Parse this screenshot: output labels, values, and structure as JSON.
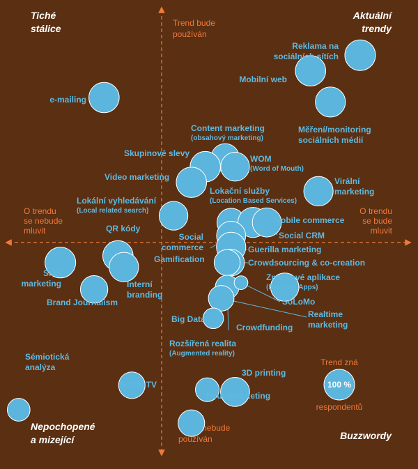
{
  "chart_data": {
    "type": "scatter",
    "title": "",
    "xlabel": "",
    "ylabel": "",
    "quadrants": {
      "top_left": [
        "Tiché",
        "stálice"
      ],
      "top_right": [
        "Aktuální",
        "trendy"
      ],
      "bottom_left": [
        "Nepochopené",
        "a mizející"
      ],
      "bottom_right": [
        "Buzzwordy"
      ]
    },
    "axis_labels": {
      "top": [
        "Trend bude",
        "používán"
      ],
      "bottom": [
        "Trend nebude",
        "používán"
      ],
      "left": [
        "O trendu",
        "se nebude",
        "mluvit"
      ],
      "right": [
        "O trendu",
        "se bude",
        "mluvit"
      ]
    },
    "legend": {
      "title": "Trend zná",
      "value": "100 %",
      "footer": "respondentů"
    },
    "points": [
      {
        "name": "Reklama na sociálních sítích",
        "lines": [
          "Reklama na",
          "sociálních sítích"
        ],
        "x": 1.0,
        "y": 0.84,
        "awareness": 100
      },
      {
        "name": "Mobilní web",
        "lines": [
          "Mobilní web"
        ],
        "x": 0.75,
        "y": 0.77,
        "awareness": 98
      },
      {
        "name": "Měření/monitoring sociálních médií",
        "lines": [
          "Měření/monitoring",
          "sociálních médií"
        ],
        "x": 0.85,
        "y": 0.63,
        "awareness": 96
      },
      {
        "name": "e-mailing",
        "lines": [
          "e-mailing"
        ],
        "x": -0.29,
        "y": 0.65,
        "awareness": 98
      },
      {
        "name": "Content marketing",
        "lines": [
          "Content marketing"
        ],
        "sub": "(obsahový marketing)",
        "x": 0.32,
        "y": 0.38,
        "awareness": 85
      },
      {
        "name": "Skupinové slevy",
        "lines": [
          "Skupinové slevy"
        ],
        "x": 0.22,
        "y": 0.34,
        "awareness": 98
      },
      {
        "name": "WOM",
        "lines": [
          "WOM"
        ],
        "sub": "(Word of Mouth)",
        "x": 0.37,
        "y": 0.34,
        "awareness": 88
      },
      {
        "name": "Video marketing",
        "lines": [
          "Video marketing"
        ],
        "x": 0.15,
        "y": 0.27,
        "awareness": 98
      },
      {
        "name": "Virální marketing",
        "lines": [
          "Virální",
          "marketing"
        ],
        "x": 0.79,
        "y": 0.23,
        "awareness": 92
      },
      {
        "name": "Lokální vyhledávání",
        "lines": [
          "Lokální vyhledávání"
        ],
        "sub": "(Local related search)",
        "x": 0.06,
        "y": 0.12,
        "awareness": 88
      },
      {
        "name": "Lokační služby",
        "lines": [
          "Lokační služby"
        ],
        "sub": "(Location Based Services)",
        "x": 0.35,
        "y": 0.09,
        "awareness": 85
      },
      {
        "name": "Mobile commerce",
        "lines": [
          "Mobile commerce"
        ],
        "x": 0.46,
        "y": 0.09,
        "awareness": 96
      },
      {
        "name": "Social CRM",
        "lines": [
          "Social CRM"
        ],
        "x": 0.53,
        "y": 0.09,
        "awareness": 90
      },
      {
        "name": "Social commerce",
        "lines": [
          "Social",
          "commerce"
        ],
        "x": 0.35,
        "y": 0.03,
        "awareness": 90
      },
      {
        "name": "Guerilla marketing",
        "lines": [
          "Guerilla marketing"
        ],
        "x": 0.35,
        "y": -0.02,
        "awareness": 92
      },
      {
        "name": "QR kódy",
        "lines": [
          "QR kódy"
        ],
        "x": -0.22,
        "y": -0.06,
        "awareness": 98
      },
      {
        "name": "Crowdsourcing & co-creation",
        "lines": [
          "Crowdsourcing & co-creation"
        ],
        "x": 0.35,
        "y": -0.09,
        "awareness": 75
      },
      {
        "name": "Gamification",
        "lines": [
          "Gamification"
        ],
        "x": 0.33,
        "y": -0.09,
        "awareness": 72
      },
      {
        "name": "SMS marketing",
        "lines": [
          "SMS",
          "marketing"
        ],
        "x": -0.51,
        "y": -0.09,
        "awareness": 100
      },
      {
        "name": "Interní branding",
        "lines": [
          "Interní",
          "branding"
        ],
        "x": -0.19,
        "y": -0.11,
        "awareness": 92
      },
      {
        "name": "Brand Journalism",
        "lines": [
          "Brand Journalism"
        ],
        "x": -0.34,
        "y": -0.21,
        "awareness": 80
      },
      {
        "name": "Značkové aplikace",
        "lines": [
          "Značkové aplikace"
        ],
        "sub": "(Branded Apps)",
        "x": 0.62,
        "y": -0.2,
        "awareness": 85
      },
      {
        "name": "Crowdfunding",
        "lines": [
          "Crowdfunding"
        ],
        "x": 0.33,
        "y": -0.2,
        "awareness": 60
      },
      {
        "name": "Realtime marketing",
        "lines": [
          "Realtime",
          "marketing"
        ],
        "x": 0.3,
        "y": -0.25,
        "awareness": 70
      },
      {
        "name": "SoLoMo",
        "lines": [
          "SoLoMo"
        ],
        "x": 0.4,
        "y": -0.18,
        "awareness": 20
      },
      {
        "name": "Big Data",
        "lines": [
          "Big Data"
        ],
        "x": 0.26,
        "y": -0.34,
        "awareness": 45
      },
      {
        "name": "Rozšířená realita",
        "lines": [
          "Rozšířená realita"
        ],
        "sub": "(Augmented reality)",
        "x": 0.23,
        "y": -0.66,
        "awareness": 60
      },
      {
        "name": "3D printing",
        "lines": [
          "3D printing"
        ],
        "x": 0.37,
        "y": -0.67,
        "awareness": 90
      },
      {
        "name": "Sémiotická analýza",
        "lines": [
          "Sémiotická",
          "analýza"
        ],
        "x": -0.72,
        "y": -0.75,
        "awareness": 55
      },
      {
        "name": "Social TV",
        "lines": [
          "Social TV"
        ],
        "x": -0.15,
        "y": -0.64,
        "awareness": 75
      },
      {
        "name": "Neuromarketing",
        "lines": [
          "Neuromarketing"
        ],
        "x": 0.15,
        "y": -0.81,
        "awareness": 75
      }
    ]
  },
  "colors": {
    "background": "#5b2f12",
    "bubble": "#5bb5dc",
    "label": "#5fb9e0",
    "axis": "#f07a3a",
    "corner_text": "#ffffff"
  }
}
